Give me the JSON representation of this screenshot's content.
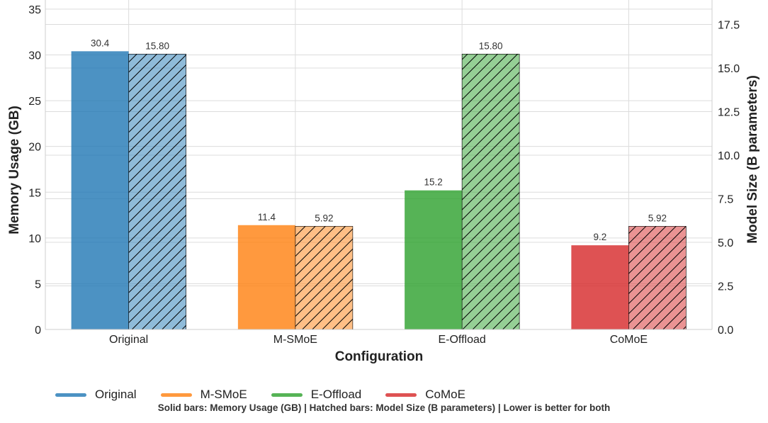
{
  "chart_data": {
    "type": "bar",
    "categories": [
      "Original",
      "M-SMoE",
      "E-Offload",
      "CoMoE"
    ],
    "colors": [
      "#1f77b4",
      "#ff7f0e",
      "#2ca02c",
      "#d62728"
    ],
    "series": [
      {
        "name": "Memory Usage (GB)",
        "axis": "left",
        "style": "solid",
        "values": [
          30.4,
          11.4,
          15.2,
          9.2
        ],
        "labels": [
          "30.4",
          "11.4",
          "15.2",
          "9.2"
        ]
      },
      {
        "name": "Model Size (B parameters)",
        "axis": "right",
        "style": "hatched",
        "values": [
          15.8,
          5.92,
          15.8,
          5.92
        ],
        "labels": [
          "15.80",
          "5.92",
          "15.80",
          "5.92"
        ]
      }
    ],
    "xlabel": "Configuration",
    "ylabel": "Memory Usage (GB)",
    "y2label": "Model Size (B parameters)",
    "ylim": [
      0,
      36
    ],
    "y2lim": [
      0,
      18.9
    ],
    "yticks": [
      "0",
      "5",
      "10",
      "15",
      "20",
      "25",
      "30",
      "35"
    ],
    "y2ticks": [
      "0.0",
      "2.5",
      "5.0",
      "7.5",
      "10.0",
      "12.5",
      "15.0",
      "17.5"
    ],
    "grid": true,
    "legend": {
      "placement": "bottom",
      "entries": [
        {
          "label": "Original",
          "color": "#1f77b4"
        },
        {
          "label": "M-SMoE",
          "color": "#ff7f0e"
        },
        {
          "label": "E-Offload",
          "color": "#2ca02c"
        },
        {
          "label": "CoMoE",
          "color": "#d62728"
        }
      ]
    },
    "footnote": "Solid bars: Memory Usage (GB) | Hatched bars: Model Size (B parameters) | Lower is better for both"
  }
}
